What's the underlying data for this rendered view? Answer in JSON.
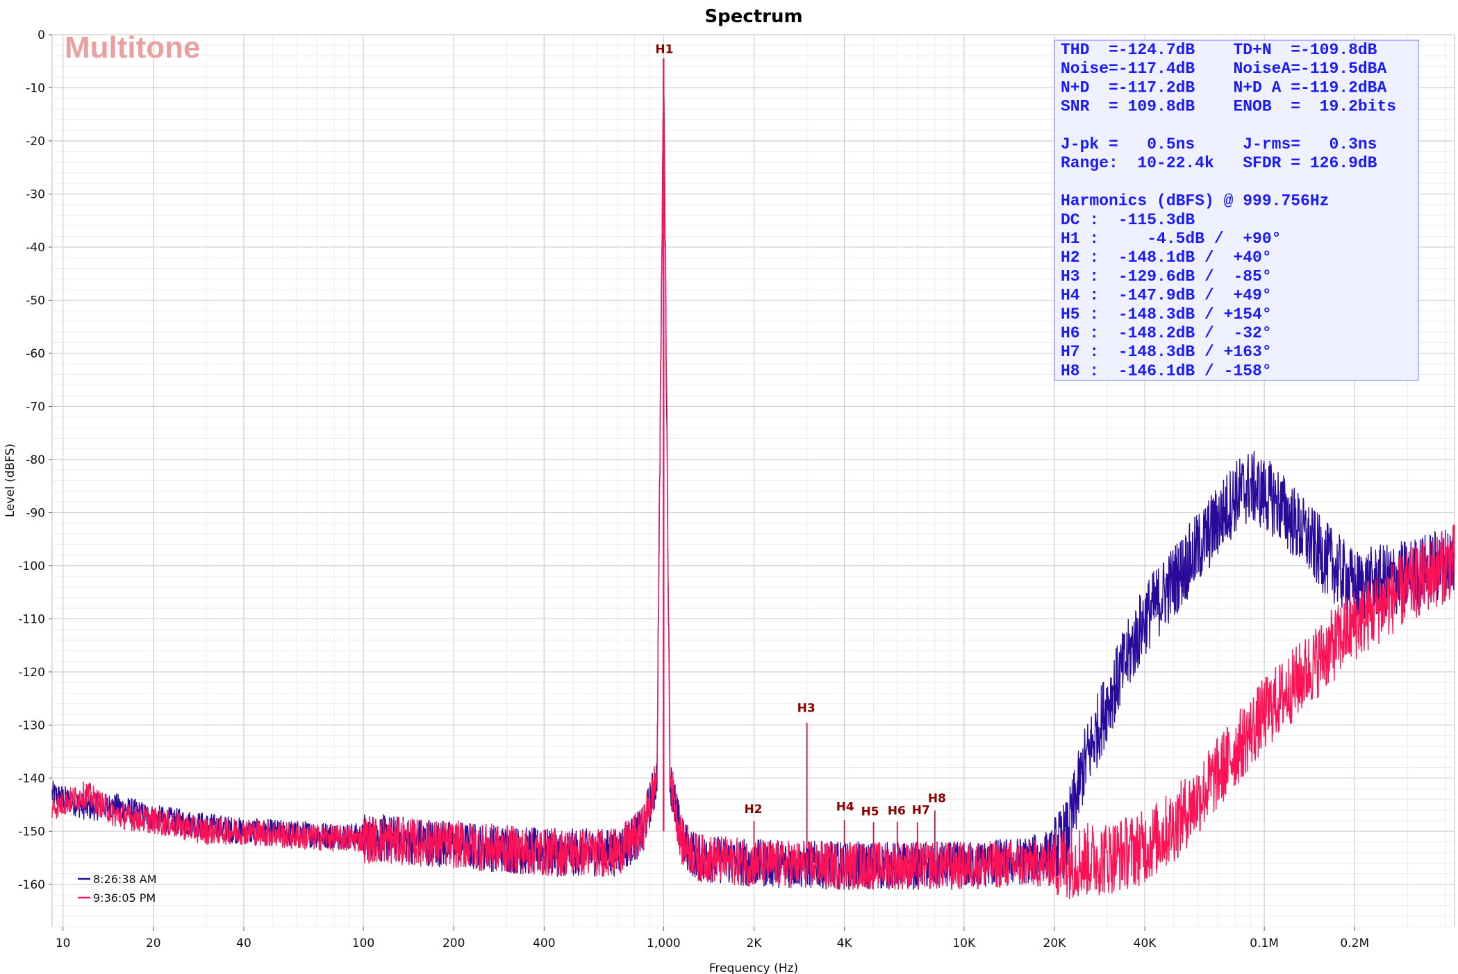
{
  "chart_data": {
    "type": "line",
    "title": "Spectrum",
    "xlabel": "Frequency (Hz)",
    "ylabel": "Level (dBFS)",
    "xscale": "log",
    "xlim": [
      9.2,
      430000
    ],
    "ylim": [
      -168,
      0
    ],
    "grid": true,
    "x_ticks": [
      {
        "v": 10,
        "label": "10"
      },
      {
        "v": 20,
        "label": "20"
      },
      {
        "v": 40,
        "label": "40"
      },
      {
        "v": 100,
        "label": "100"
      },
      {
        "v": 200,
        "label": "200"
      },
      {
        "v": 400,
        "label": "400"
      },
      {
        "v": 1000,
        "label": "1,000"
      },
      {
        "v": 2000,
        "label": "2K"
      },
      {
        "v": 4000,
        "label": "4K"
      },
      {
        "v": 10000,
        "label": "10K"
      },
      {
        "v": 20000,
        "label": "20K"
      },
      {
        "v": 40000,
        "label": "40K"
      },
      {
        "v": 100000,
        "label": "0.1M"
      },
      {
        "v": 200000,
        "label": "0.2M"
      }
    ],
    "y_ticks": [
      {
        "v": 0,
        "label": "0"
      },
      {
        "v": -10,
        "label": "-10"
      },
      {
        "v": -20,
        "label": "-20"
      },
      {
        "v": -30,
        "label": "-30"
      },
      {
        "v": -40,
        "label": "-40"
      },
      {
        "v": -50,
        "label": "-50"
      },
      {
        "v": -60,
        "label": "-60"
      },
      {
        "v": -70,
        "label": "-70"
      },
      {
        "v": -80,
        "label": "-80"
      },
      {
        "v": -90,
        "label": "-90"
      },
      {
        "v": -100,
        "label": "-100"
      },
      {
        "v": -110,
        "label": "-110"
      },
      {
        "v": -120,
        "label": "-120"
      },
      {
        "v": -130,
        "label": "-130"
      },
      {
        "v": -140,
        "label": "-140"
      },
      {
        "v": -150,
        "label": "-150"
      },
      {
        "v": -160,
        "label": "-160"
      }
    ],
    "legend_position": "bottom-left",
    "series": [
      {
        "name": "8:26:38 AM",
        "color": "#2a0a9a",
        "points": [
          [
            9.2,
            -143
          ],
          [
            12,
            -145.5
          ],
          [
            15,
            -145.3
          ],
          [
            20,
            -147.5
          ],
          [
            30,
            -149
          ],
          [
            40,
            -150
          ],
          [
            60,
            -150.5
          ],
          [
            100,
            -151
          ],
          [
            200,
            -152.5
          ],
          [
            400,
            -154
          ],
          [
            700,
            -154
          ],
          [
            850,
            -150
          ],
          [
            950,
            -140
          ],
          [
            1000,
            -4.5
          ],
          [
            1050,
            -140
          ],
          [
            1150,
            -152
          ],
          [
            1300,
            -155
          ],
          [
            2000,
            -156
          ],
          [
            4000,
            -156.5
          ],
          [
            10000,
            -156.5
          ],
          [
            16000,
            -155.5
          ],
          [
            20000,
            -154
          ],
          [
            22000,
            -151
          ],
          [
            25000,
            -138
          ],
          [
            30000,
            -126
          ],
          [
            40000,
            -110
          ],
          [
            60000,
            -97
          ],
          [
            80000,
            -87
          ],
          [
            90000,
            -85
          ],
          [
            110000,
            -88
          ],
          [
            150000,
            -97
          ],
          [
            200000,
            -104
          ],
          [
            300000,
            -102
          ],
          [
            430000,
            -99
          ]
        ]
      },
      {
        "name": "9:36:05 PM",
        "color": "#ff1155",
        "points": [
          [
            9.2,
            -145.5
          ],
          [
            12,
            -143
          ],
          [
            15,
            -147
          ],
          [
            20,
            -148
          ],
          [
            30,
            -150
          ],
          [
            40,
            -150
          ],
          [
            60,
            -151
          ],
          [
            100,
            -151.5
          ],
          [
            200,
            -152.5
          ],
          [
            400,
            -154
          ],
          [
            700,
            -154
          ],
          [
            850,
            -150
          ],
          [
            950,
            -140
          ],
          [
            1000,
            -4.5
          ],
          [
            1050,
            -140
          ],
          [
            1150,
            -152
          ],
          [
            1300,
            -155
          ],
          [
            2000,
            -156
          ],
          [
            4000,
            -156.5
          ],
          [
            10000,
            -156.5
          ],
          [
            20000,
            -156
          ],
          [
            30000,
            -155
          ],
          [
            40000,
            -153
          ],
          [
            50000,
            -149
          ],
          [
            60000,
            -144
          ],
          [
            80000,
            -135
          ],
          [
            100000,
            -128
          ],
          [
            150000,
            -118
          ],
          [
            200000,
            -111
          ],
          [
            300000,
            -104
          ],
          [
            430000,
            -99
          ]
        ]
      }
    ],
    "harmonic_markers": [
      {
        "label": "H1",
        "f": 1000,
        "level": -4.5
      },
      {
        "label": "H2",
        "f": 2000,
        "level": -148.1
      },
      {
        "label": "H3",
        "f": 3000,
        "level": -129.6
      },
      {
        "label": "H4",
        "f": 4000,
        "level": -147.9
      },
      {
        "label": "H5",
        "f": 5000,
        "level": -148.3
      },
      {
        "label": "H6",
        "f": 6000,
        "level": -148.2
      },
      {
        "label": "H7",
        "f": 7000,
        "level": -148.3
      },
      {
        "label": "H8",
        "f": 8000,
        "level": -146.1
      }
    ],
    "annotations": {
      "watermark": "Multitone",
      "stats_lines": [
        "THD  =-124.7dB    TD+N  =-109.8dB",
        "Noise=-117.4dB    NoiseA=-119.5dBA",
        "N+D  =-117.2dB    N+D A =-119.2dBA",
        "SNR  = 109.8dB    ENOB  =  19.2bits",
        "",
        "J-pk =   0.5ns     J-rms=   0.3ns",
        "Range:  10-22.4k   SFDR = 126.9dB",
        "",
        "Harmonics (dBFS) @ 999.756Hz",
        "DC :  -115.3dB",
        "H1 :     -4.5dB /  +90°",
        "H2 :  -148.1dB /  +40°",
        "H3 :  -129.6dB /  -85°",
        "H4 :  -147.9dB /  +49°",
        "H5 :  -148.3dB / +154°",
        "H6 :  -148.2dB /  -32°",
        "H7 :  -148.3dB / +163°",
        "H8 :  -146.1dB / -158°"
      ]
    }
  }
}
